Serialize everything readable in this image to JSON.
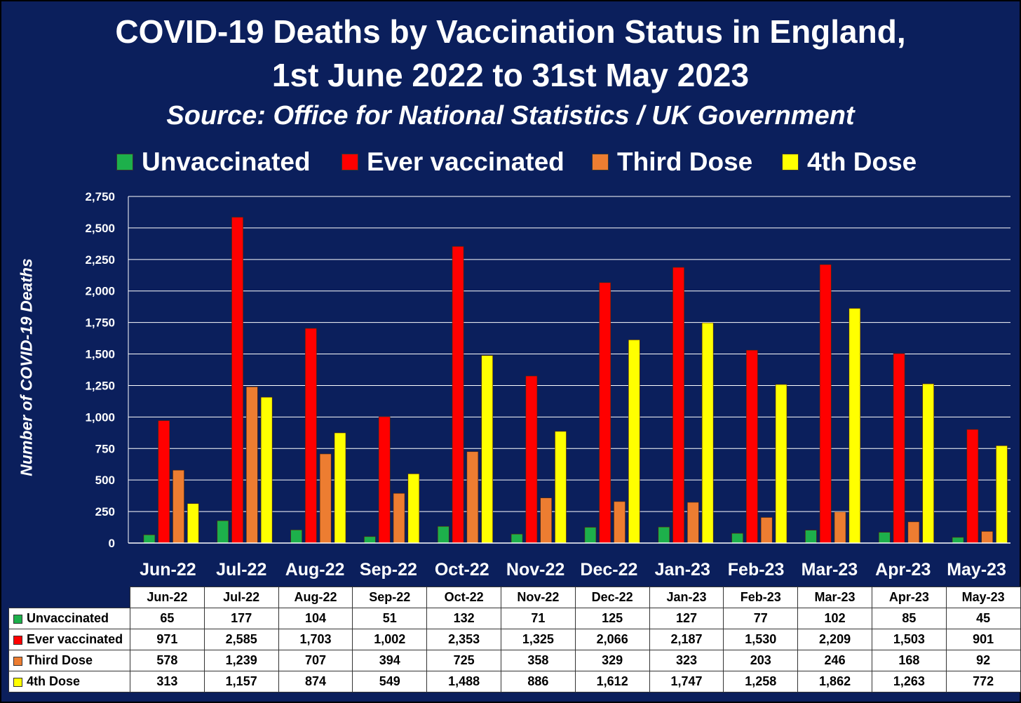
{
  "title_line1": "COVID-19 Deaths by Vaccination Status in England,",
  "title_line2": "1st June 2022 to 31st May 2023",
  "subtitle": "Source: Office for National Statistics / UK Government",
  "colors": {
    "background": "#0b1f5c",
    "Unvaccinated": "#1db04b",
    "Ever vaccinated": "#ff0000",
    "Third Dose": "#ed7d31",
    "4th Dose": "#ffff00"
  },
  "chart_data": {
    "type": "bar",
    "ylabel": "Number of COVID-19 Deaths",
    "ylim": [
      0,
      2750
    ],
    "yticks": [
      0,
      250,
      500,
      750,
      1000,
      1250,
      1500,
      1750,
      2000,
      2250,
      2500,
      2750
    ],
    "ytick_labels": [
      "0",
      "250",
      "500",
      "750",
      "1,000",
      "1,250",
      "1,500",
      "1,750",
      "2,000",
      "2,250",
      "2,500",
      "2,750"
    ],
    "grid": true,
    "legend_position": "top",
    "categories": [
      "Jun-22",
      "Jul-22",
      "Aug-22",
      "Sep-22",
      "Oct-22",
      "Nov-22",
      "Dec-22",
      "Jan-23",
      "Feb-23",
      "Mar-23",
      "Apr-23",
      "May-23"
    ],
    "series": [
      {
        "name": "Unvaccinated",
        "values": [
          65,
          177,
          104,
          51,
          132,
          71,
          125,
          127,
          77,
          102,
          85,
          45
        ]
      },
      {
        "name": "Ever vaccinated",
        "values": [
          971,
          2585,
          1703,
          1002,
          2353,
          1325,
          2066,
          2187,
          1530,
          2209,
          1503,
          901
        ]
      },
      {
        "name": "Third Dose",
        "values": [
          578,
          1239,
          707,
          394,
          725,
          358,
          329,
          323,
          203,
          246,
          168,
          92
        ]
      },
      {
        "name": "4th Dose",
        "values": [
          313,
          1157,
          874,
          549,
          1488,
          886,
          1612,
          1747,
          1258,
          1862,
          1263,
          772
        ]
      }
    ]
  },
  "table": {
    "header": [
      "Jun-22",
      "Jul-22",
      "Aug-22",
      "Sep-22",
      "Oct-22",
      "Nov-22",
      "Dec-22",
      "Jan-23",
      "Feb-23",
      "Mar-23",
      "Apr-23",
      "May-23"
    ],
    "rows": [
      {
        "label": "Unvaccinated",
        "cells": [
          "65",
          "177",
          "104",
          "51",
          "132",
          "71",
          "125",
          "127",
          "77",
          "102",
          "85",
          "45"
        ]
      },
      {
        "label": "Ever vaccinated",
        "cells": [
          "971",
          "2,585",
          "1,703",
          "1,002",
          "2,353",
          "1,325",
          "2,066",
          "2,187",
          "1,530",
          "2,209",
          "1,503",
          "901"
        ]
      },
      {
        "label": "Third Dose",
        "cells": [
          "578",
          "1,239",
          "707",
          "394",
          "725",
          "358",
          "329",
          "323",
          "203",
          "246",
          "168",
          "92"
        ]
      },
      {
        "label": "4th Dose",
        "cells": [
          "313",
          "1,157",
          "874",
          "549",
          "1,488",
          "886",
          "1,612",
          "1,747",
          "1,258",
          "1,862",
          "1,263",
          "772"
        ]
      }
    ]
  }
}
